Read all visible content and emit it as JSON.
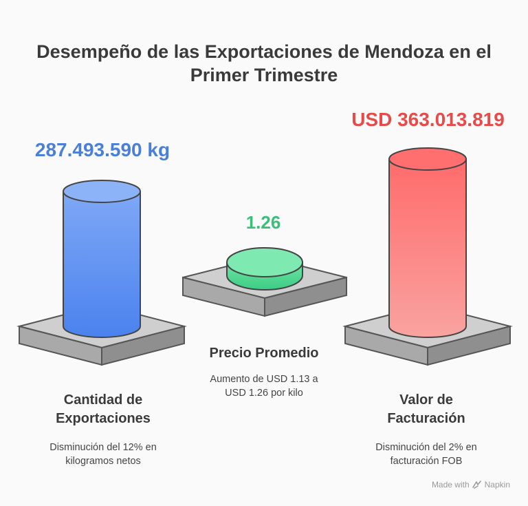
{
  "title": {
    "line1": "Desempeño de las Exportaciones de Mendoza en el",
    "line2": "Primer Trimestre"
  },
  "metrics": {
    "quantity": "287.493.590 kg",
    "price": "1.26",
    "value": "USD 363.013.819"
  },
  "items": [
    {
      "heading_line1": "Cantidad de",
      "heading_line2": "Exportaciones",
      "desc_line1": "Disminución del 12% en",
      "desc_line2": "kilogramos netos"
    },
    {
      "heading_line1": "Precio Promedio",
      "desc_line1": "Aumento de USD 1.13 a",
      "desc_line2": "USD 1.26 por kilo"
    },
    {
      "heading_line1": "Valor de",
      "heading_line2": "Facturación",
      "desc_line1": "Disminución del 2% en",
      "desc_line2": "facturación FOB"
    }
  ],
  "footer": {
    "made_with": "Made with",
    "brand": "Napkin"
  },
  "colors": {
    "blue": "#4a7fd8",
    "green": "#3bbf78",
    "red": "#e84a4a"
  },
  "icons": {
    "brand_mark": "napkin-logo-icon"
  }
}
